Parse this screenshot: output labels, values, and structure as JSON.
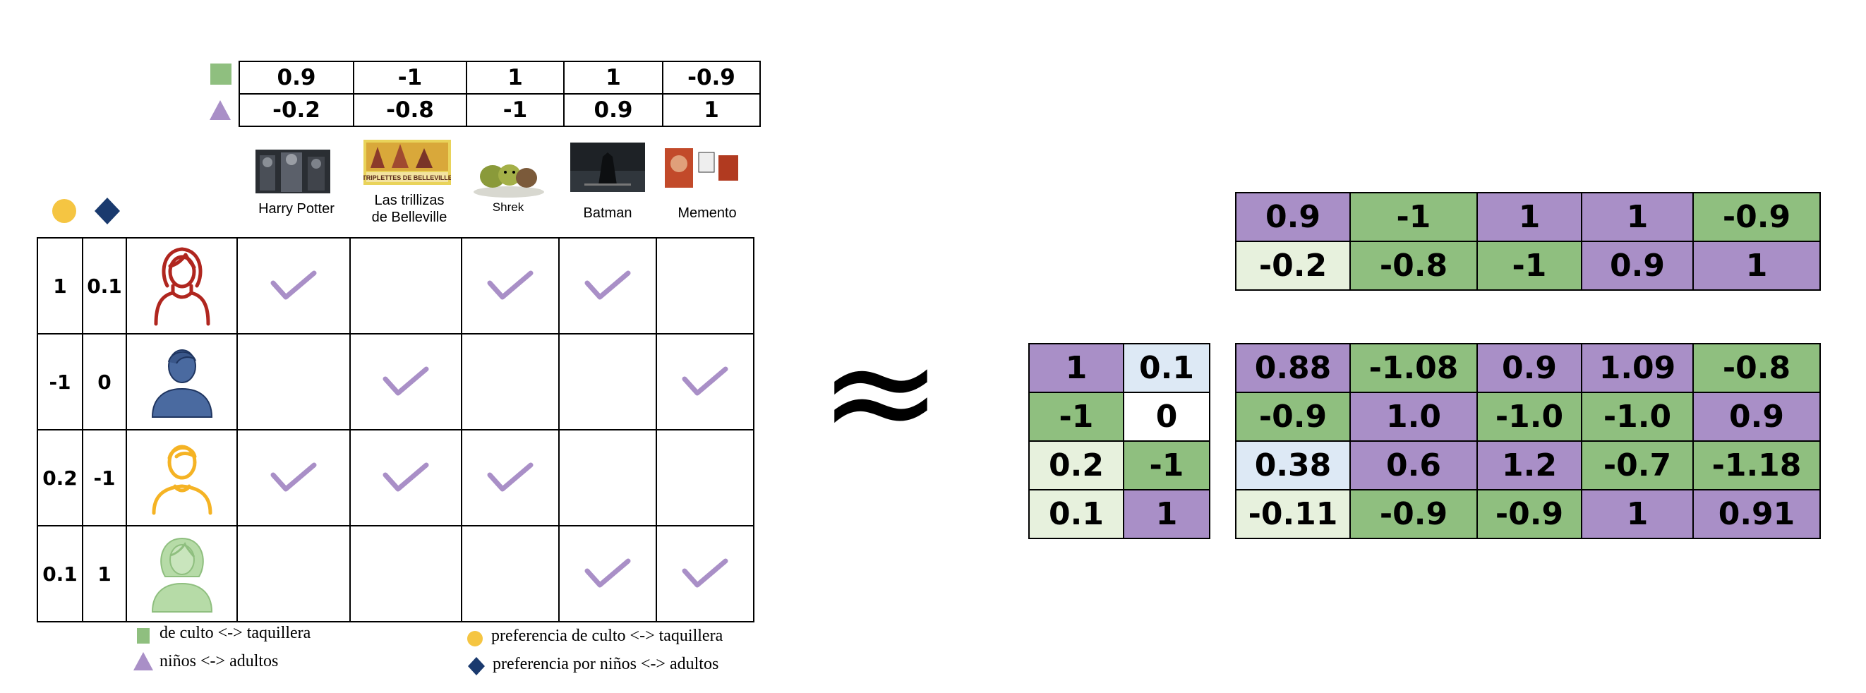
{
  "movie_factors": {
    "culto_taquillera": [
      "0.9",
      "-1",
      "1",
      "1",
      "-0.9"
    ],
    "ninos_adultos": [
      "-0.2",
      "-0.8",
      "-1",
      "0.9",
      "1"
    ]
  },
  "movies": [
    {
      "label": "Harry Potter"
    },
    {
      "label": "Las trillizas de Belleville",
      "line1": "Las trillizas",
      "line2": "de Belleville",
      "poster_caption": "TRIPLETTES DE BELLEVILLE"
    },
    {
      "label": "Shrek"
    },
    {
      "label": "Batman"
    },
    {
      "label": "Memento"
    }
  ],
  "users": [
    {
      "pref_culto": "1",
      "pref_adultos": "0.1",
      "icon": "woman-icon",
      "color": "#b0261f",
      "ratings": [
        true,
        false,
        true,
        true,
        false
      ]
    },
    {
      "pref_culto": "-1",
      "pref_adultos": "0",
      "icon": "man-icon",
      "color": "#4a6aa0",
      "ratings": [
        false,
        true,
        false,
        false,
        true
      ]
    },
    {
      "pref_culto": "0.2",
      "pref_adultos": "-1",
      "icon": "boy-icon",
      "color": "#f5b324",
      "ratings": [
        true,
        true,
        true,
        false,
        false
      ]
    },
    {
      "pref_culto": "0.1",
      "pref_adultos": "1",
      "icon": "girl-icon",
      "color": "#b6dba7",
      "ratings": [
        false,
        false,
        false,
        true,
        true
      ]
    }
  ],
  "legend": {
    "movie_square": "de culto <-> taquillera",
    "movie_triangle": "niños <-> adultos",
    "user_circle": "preferencia de culto <-> taquillera",
    "user_diamond": "preferencia por niños <-> adultos"
  },
  "approx_symbol": "≈",
  "matrix_movie": [
    [
      {
        "v": "0.9",
        "c": "purple"
      },
      {
        "v": "-1",
        "c": "green"
      },
      {
        "v": "1",
        "c": "purple"
      },
      {
        "v": "1",
        "c": "purple"
      },
      {
        "v": "-0.9",
        "c": "green"
      }
    ],
    [
      {
        "v": "-0.2",
        "c": "lgreen"
      },
      {
        "v": "-0.8",
        "c": "green"
      },
      {
        "v": "-1",
        "c": "green"
      },
      {
        "v": "0.9",
        "c": "purple"
      },
      {
        "v": "1",
        "c": "purple"
      }
    ]
  ],
  "matrix_user": [
    [
      {
        "v": "1",
        "c": "purple"
      },
      {
        "v": "0.1",
        "c": "lblue"
      }
    ],
    [
      {
        "v": "-1",
        "c": "green"
      },
      {
        "v": "0",
        "c": "white"
      }
    ],
    [
      {
        "v": "0.2",
        "c": "lgreen"
      },
      {
        "v": "-1",
        "c": "green"
      }
    ],
    [
      {
        "v": "0.1",
        "c": "lgreen"
      },
      {
        "v": "1",
        "c": "purple"
      }
    ]
  ],
  "matrix_result": [
    [
      {
        "v": "0.88",
        "c": "purple"
      },
      {
        "v": "-1.08",
        "c": "green"
      },
      {
        "v": "0.9",
        "c": "purple"
      },
      {
        "v": "1.09",
        "c": "purple"
      },
      {
        "v": "-0.8",
        "c": "green"
      }
    ],
    [
      {
        "v": "-0.9",
        "c": "green"
      },
      {
        "v": "1.0",
        "c": "purple"
      },
      {
        "v": "-1.0",
        "c": "green"
      },
      {
        "v": "-1.0",
        "c": "green"
      },
      {
        "v": "0.9",
        "c": "purple"
      }
    ],
    [
      {
        "v": "0.38",
        "c": "lblue"
      },
      {
        "v": "0.6",
        "c": "purple"
      },
      {
        "v": "1.2",
        "c": "purple"
      },
      {
        "v": "-0.7",
        "c": "green"
      },
      {
        "v": "-1.18",
        "c": "green"
      }
    ],
    [
      {
        "v": "-0.11",
        "c": "lgreen"
      },
      {
        "v": "-0.9",
        "c": "green"
      },
      {
        "v": "-0.9",
        "c": "green"
      },
      {
        "v": "1",
        "c": "purple"
      },
      {
        "v": "0.91",
        "c": "purple"
      }
    ]
  ],
  "colors": {
    "purple": "#a98fc7",
    "green": "#8fbf7f",
    "yellow": "#f5c542",
    "navy": "#1a3a6e",
    "check": "#a98fc7"
  }
}
